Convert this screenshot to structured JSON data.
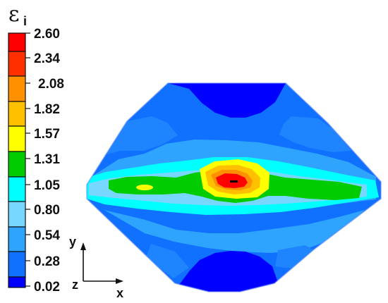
{
  "title": {
    "symbol": "ε",
    "subscript": "i"
  },
  "colorbar": {
    "colors": [
      "#0000ff",
      "#1070ff",
      "#2ea4ff",
      "#78d7ff",
      "#00ffff",
      "#00cc00",
      "#ffff00",
      "#ffc000",
      "#ff9000",
      "#ff3000",
      "#ff0000"
    ],
    "labels": [
      "2.60",
      "2.34",
      "2.08",
      "1.82",
      "1.57",
      "1.31",
      "1.05",
      "0.80",
      "0.54",
      "0.28",
      "0.02"
    ]
  },
  "axes": {
    "x": "x",
    "y": "y",
    "z": "z"
  }
}
